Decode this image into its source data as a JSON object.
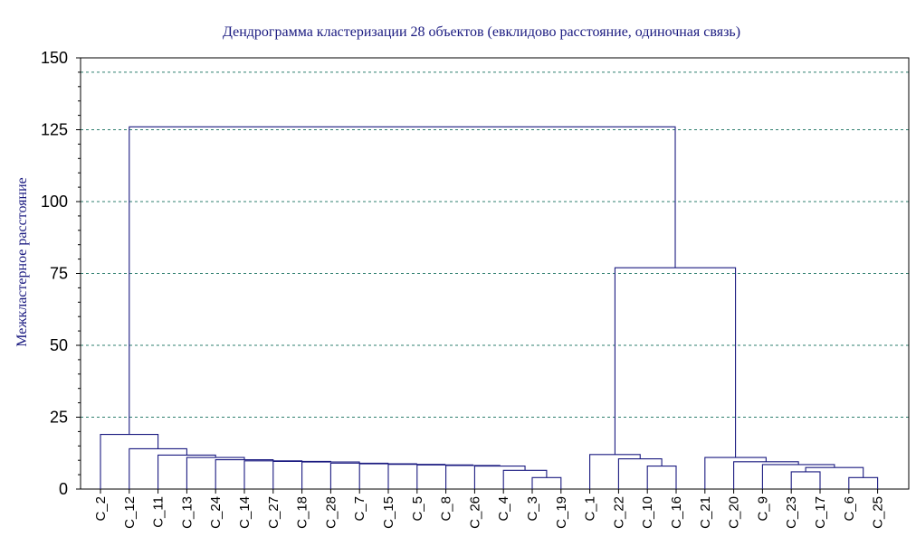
{
  "chart_data": {
    "type": "dendrogram",
    "title": "Дендрограмма кластеризации 28 объектов (евклидово расстояние, одиночная связь)",
    "ylabel": "Межкластерное расстояние",
    "xlabel": "",
    "ylim": [
      0,
      150
    ],
    "yticks": [
      0,
      25,
      50,
      75,
      100,
      125,
      150
    ],
    "gridlines": [
      25,
      50,
      75,
      100,
      125,
      145
    ],
    "leaves": [
      "C_2",
      "C_12",
      "C_11",
      "C_13",
      "C_24",
      "C_14",
      "C_27",
      "C_18",
      "C_28",
      "C_7",
      "C_15",
      "C_5",
      "C_8",
      "C_26",
      "C_4",
      "C_3",
      "C_19",
      "C_1",
      "C_22",
      "C_10",
      "C_16",
      "C_21",
      "C_20",
      "C_9",
      "C_23",
      "C_17",
      "C_6",
      "C_25"
    ],
    "merges": [
      {
        "left": "C_3",
        "right": "C_19",
        "height": 4.0
      },
      {
        "left": "C_4",
        "right": "m1",
        "height": 6.5
      },
      {
        "left": "C_26",
        "right": "m2",
        "height": 8.0
      },
      {
        "left": "C_8",
        "right": "m3",
        "height": 8.2
      },
      {
        "left": "C_5",
        "right": "m4",
        "height": 8.4
      },
      {
        "left": "C_15",
        "right": "m5",
        "height": 8.6
      },
      {
        "left": "C_7",
        "right": "m6",
        "height": 8.8
      },
      {
        "left": "C_28",
        "right": "m7",
        "height": 9.0
      },
      {
        "left": "C_18",
        "right": "m8",
        "height": 9.4
      },
      {
        "left": "C_27",
        "right": "m9",
        "height": 9.6
      },
      {
        "left": "C_14",
        "right": "m10",
        "height": 9.8
      },
      {
        "left": "C_24",
        "right": "m11",
        "height": 10.2
      },
      {
        "left": "C_13",
        "right": "m12",
        "height": 11.0
      },
      {
        "left": "C_11",
        "right": "m13",
        "height": 11.8
      },
      {
        "left": "C_12",
        "right": "m14",
        "height": 14.0
      },
      {
        "left": "C_2",
        "right": "m15",
        "height": 19.0
      },
      {
        "left": "C_10",
        "right": "C_16",
        "height": 8.0
      },
      {
        "left": "C_22",
        "right": "m17",
        "height": 10.5
      },
      {
        "left": "C_1",
        "right": "m18",
        "height": 12.0
      },
      {
        "left": "C_6",
        "right": "C_25",
        "height": 4.0
      },
      {
        "left": "C_23",
        "right": "C_17",
        "height": 6.0
      },
      {
        "left": "m21",
        "right": "m20",
        "height": 7.5
      },
      {
        "left": "C_9",
        "right": "m22",
        "height": 8.5
      },
      {
        "left": "C_20",
        "right": "m23",
        "height": 9.5
      },
      {
        "left": "C_21",
        "right": "m24",
        "height": 11.0
      },
      {
        "left": "m19",
        "right": "m25",
        "height": 77.0
      },
      {
        "left": "m16",
        "right": "m26",
        "height": 126.0
      }
    ]
  }
}
